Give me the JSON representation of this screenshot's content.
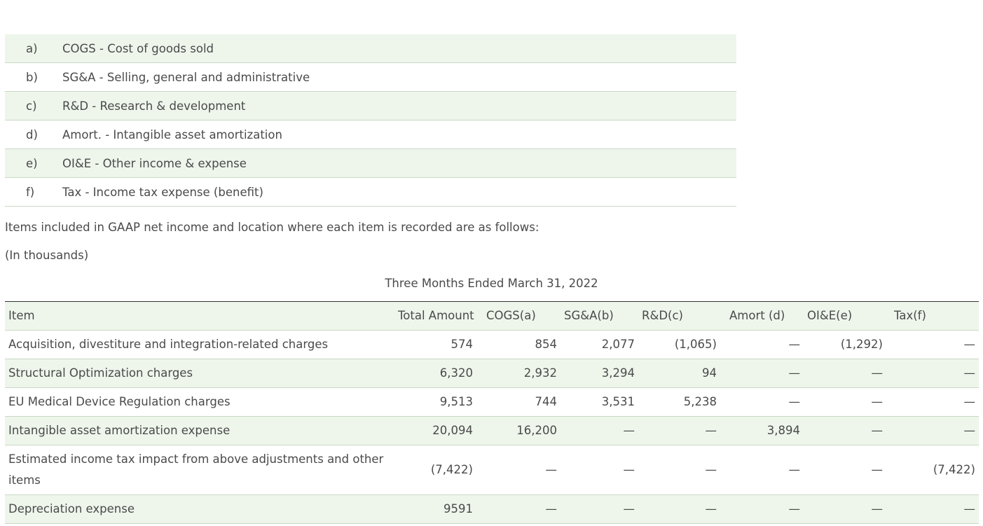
{
  "legend": [
    {
      "key": "a)",
      "text": "COGS - Cost of goods sold"
    },
    {
      "key": "b)",
      "text": "SG&A - Selling, general and administrative"
    },
    {
      "key": "c)",
      "text": "R&D - Research & development"
    },
    {
      "key": "d)",
      "text": "Amort. - Intangible asset amortization"
    },
    {
      "key": "e)",
      "text": "OI&E - Other income & expense"
    },
    {
      "key": "f)",
      "text": "Tax - Income tax expense (benefit)"
    }
  ],
  "intro_text": "Items included in GAAP net income and location where each item is recorded are as follows:",
  "units_text": "(In thousands)",
  "period_title": "Three Months Ended March 31, 2022",
  "table": {
    "headers": [
      "Item",
      "Total Amount",
      "COGS(a)",
      "SG&A(b)",
      "R&D(c)",
      "Amort (d)",
      "OI&E(e)",
      "Tax(f)"
    ],
    "rows": [
      {
        "label": "Acquisition, divestiture and integration-related charges",
        "values": [
          "574",
          "854",
          "2,077",
          "(1,065)",
          "—",
          "(1,292)",
          "—"
        ]
      },
      {
        "label": "Structural Optimization charges",
        "values": [
          "6,320",
          "2,932",
          "3,294",
          "94",
          "—",
          "—",
          "—"
        ]
      },
      {
        "label": "EU Medical Device Regulation charges",
        "values": [
          "9,513",
          "744",
          "3,531",
          "5,238",
          "—",
          "—",
          "—"
        ]
      },
      {
        "label": "Intangible asset amortization expense",
        "values": [
          "20,094",
          "16,200",
          "—",
          "—",
          "3,894",
          "—",
          "—"
        ]
      },
      {
        "label": "Estimated income tax impact from above adjustments and other items",
        "values": [
          "(7,422)",
          "—",
          "—",
          "—",
          "—",
          "—",
          "(7,422)"
        ]
      },
      {
        "label": "Depreciation expense",
        "values": [
          "9591",
          "—",
          "—",
          "—",
          "—",
          "—",
          "—"
        ]
      }
    ]
  }
}
